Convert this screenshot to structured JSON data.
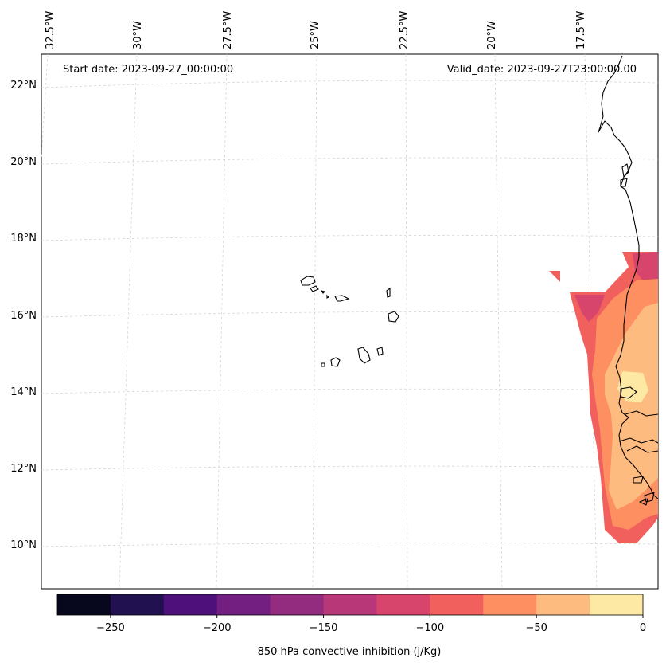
{
  "map": {
    "start_date": "Start date: 2023-09-27_00:00:00",
    "valid_date": "Valid_date: 2023-09-27T23:00:00.00",
    "lon_labels": [
      "32.5°W",
      "30°W",
      "27.5°W",
      "25°W",
      "22.5°W",
      "20°W",
      "17.5°W"
    ],
    "lat_labels": [
      "22°N",
      "20°N",
      "18°N",
      "16°N",
      "14°N",
      "12°N",
      "10°N"
    ],
    "gridlines": true
  },
  "colorbar": {
    "label": "850 hPa convective inhibition (j/Kg)",
    "ticks": [
      "−250",
      "−200",
      "−150",
      "−100",
      "−50",
      "0"
    ],
    "tick_values": [
      -250,
      -200,
      -150,
      -100,
      -50,
      0
    ],
    "range": [
      -275,
      0
    ],
    "colors": [
      "#07071d",
      "#221150",
      "#4e117b",
      "#721f81",
      "#932b7e",
      "#b73779",
      "#d8456c",
      "#f1605d",
      "#fd8f61",
      "#febb80",
      "#fde8a4"
    ]
  },
  "chart_data": {
    "type": "heatmap",
    "title": "",
    "variable": "850 hPa convective inhibition (j/Kg)",
    "levels": [
      -275,
      -250,
      -225,
      -200,
      -175,
      -150,
      -125,
      -100,
      -75,
      -50,
      -25,
      0
    ],
    "region_lon": [
      -33,
      -16
    ],
    "region_lat": [
      9,
      22.5
    ],
    "projection": "lambert_conformal"
  }
}
